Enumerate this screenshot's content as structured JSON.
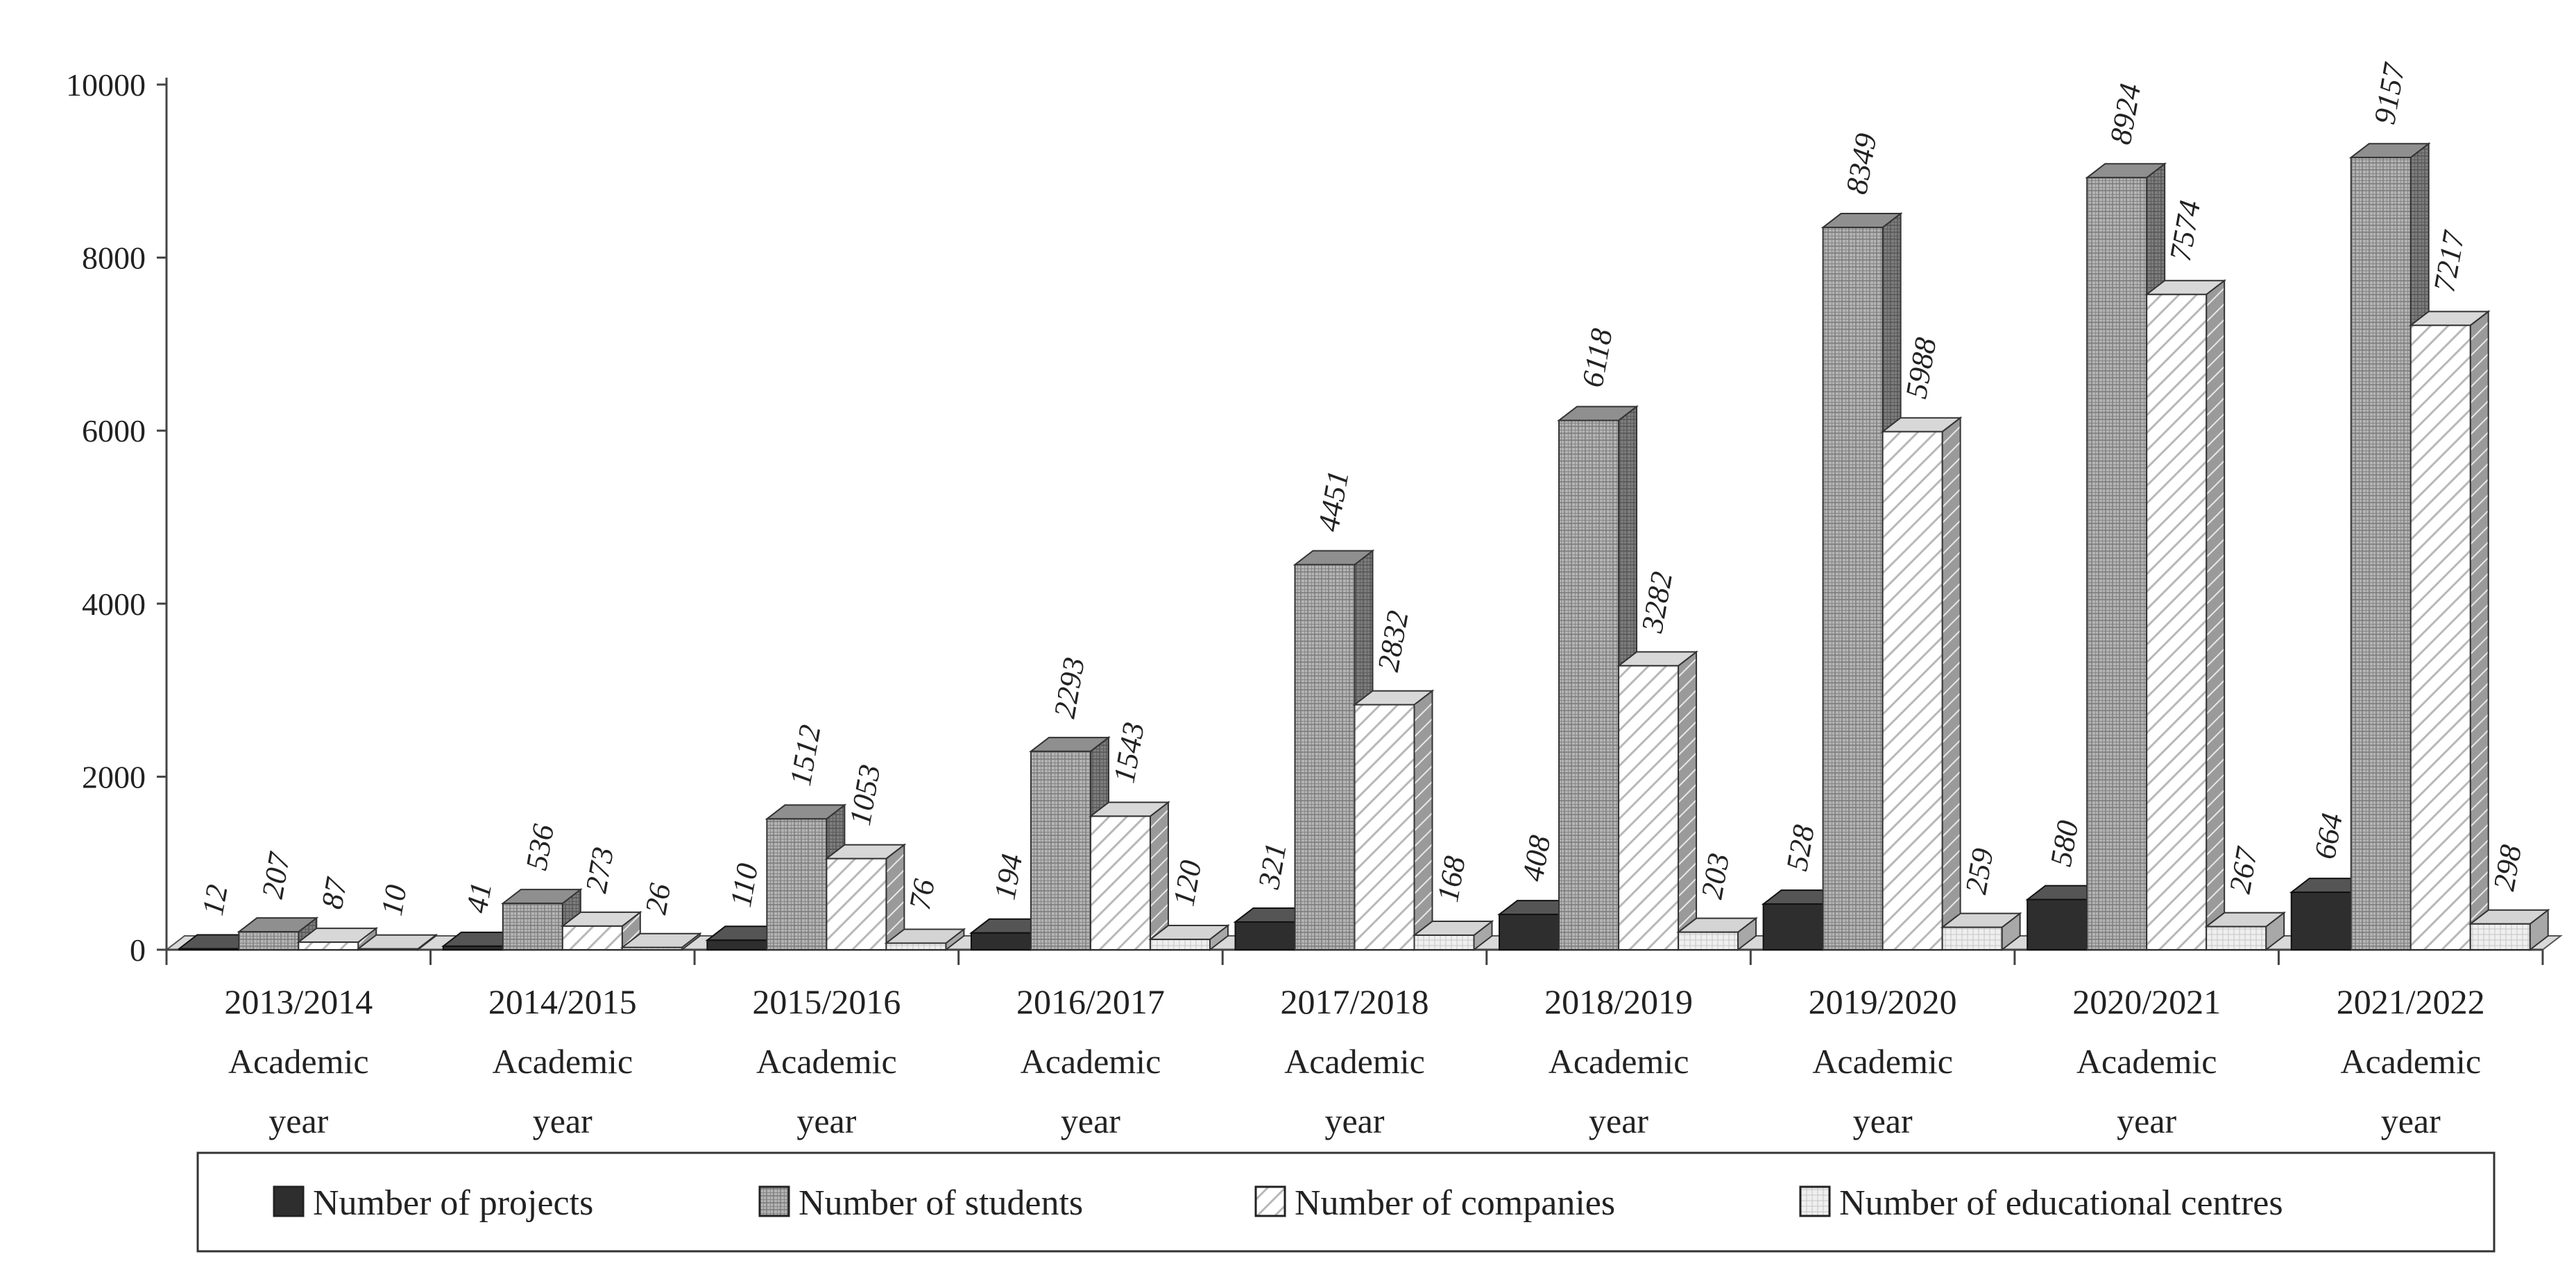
{
  "chart_data": {
    "type": "bar",
    "title": "",
    "xlabel": "",
    "ylabel": "",
    "ylim": [
      0,
      10000
    ],
    "yticks": [
      0,
      2000,
      4000,
      6000,
      8000,
      10000
    ],
    "categories": [
      [
        "2013/2014",
        "Academic",
        "year"
      ],
      [
        "2014/2015",
        "Academic",
        "year"
      ],
      [
        "2015/2016",
        "Academic",
        "year"
      ],
      [
        "2016/2017",
        "Academic",
        "year"
      ],
      [
        "2017/2018",
        "Academic",
        "year"
      ],
      [
        "2018/2019",
        "Academic",
        "year"
      ],
      [
        "2019/2020",
        "Academic",
        "year"
      ],
      [
        "2020/2021",
        "Academic",
        "year"
      ],
      [
        "2021/2022",
        "Academic",
        "year"
      ]
    ],
    "series": [
      {
        "name": "Number of projects",
        "values": [
          12,
          41,
          110,
          194,
          321,
          408,
          528,
          580,
          664
        ]
      },
      {
        "name": "Number of students",
        "values": [
          207,
          536,
          1512,
          2293,
          4451,
          6118,
          8349,
          8924,
          9157
        ]
      },
      {
        "name": "Number of companies",
        "values": [
          87,
          273,
          1053,
          1543,
          2832,
          3282,
          5988,
          7574,
          7217
        ]
      },
      {
        "name": "Number of educational centres",
        "values": [
          10,
          26,
          76,
          120,
          168,
          203,
          259,
          267,
          298
        ]
      }
    ],
    "legend_position": "bottom",
    "grid": false,
    "style": "3d-clustered-column",
    "colors": {
      "projects": "#2b2b2b",
      "students": "#a9a9a9",
      "companies": "#ffffff",
      "centres": "#ebebeb"
    }
  }
}
